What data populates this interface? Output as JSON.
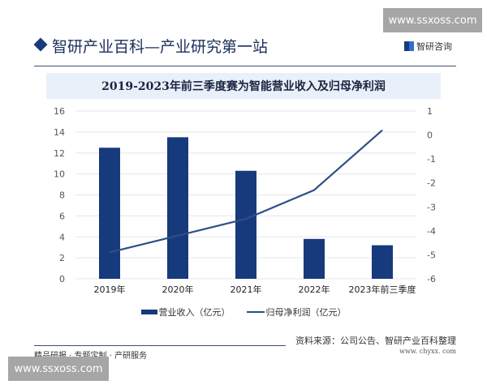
{
  "watermark": "www.ssxoss.com",
  "header": {
    "title": "智研产业百科—产业研究第一站",
    "brand": "智研咨询"
  },
  "chart_data": {
    "type": "bar+line",
    "title": "2019-2023年前三季度赛为智能营业收入及归母净利润",
    "categories": [
      "2019年",
      "2020年",
      "2021年",
      "2022年",
      "2023年前三季度"
    ],
    "series": [
      {
        "name": "营业收入（亿元）",
        "type": "bar",
        "axis": "left",
        "values": [
          12.5,
          13.5,
          10.3,
          3.8,
          3.2
        ],
        "color": "#173a7c"
      },
      {
        "name": "归母净利润（亿元）",
        "type": "line",
        "axis": "right",
        "values": [
          -4.9,
          -4.2,
          -3.5,
          -2.3,
          0.2
        ],
        "color": "#2f4e86"
      }
    ],
    "y_left": {
      "ylim": [
        0,
        16
      ],
      "ticks": [
        "0",
        "2",
        "4",
        "6",
        "8",
        "10",
        "12",
        "14",
        "16"
      ]
    },
    "y_right": {
      "ylim": [
        -6,
        1
      ],
      "ticks": [
        "-6",
        "-5",
        "-4",
        "-3",
        "-2",
        "-1",
        "0",
        "1"
      ]
    },
    "grid": true,
    "legend_position": "bottom"
  },
  "footer": {
    "left": "精品研报 · 专题定制 · 产研服务",
    "source": "资料来源：公司公告、智研产业百科整理",
    "site": "www. chyxx. com"
  }
}
